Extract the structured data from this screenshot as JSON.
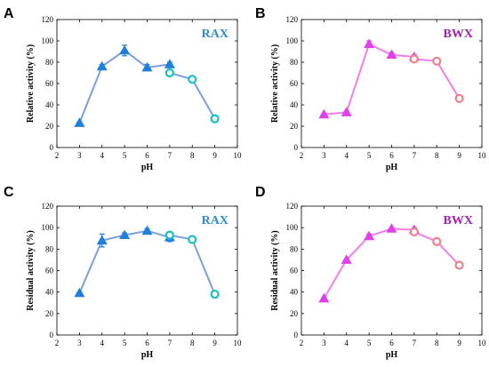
{
  "chart_data": [
    {
      "type": "line",
      "panel": "A",
      "label": "RAX",
      "xlabel": "pH",
      "ylabel": "Relative activity (%)",
      "xlim": [
        2,
        10
      ],
      "ylim": [
        0,
        120
      ],
      "xticks": [
        "2",
        "3",
        "4",
        "5",
        "6",
        "7",
        "8",
        "9",
        "10"
      ],
      "yticks": [
        "0",
        "20",
        "40",
        "60",
        "80",
        "100",
        "120"
      ],
      "colors": {
        "line": "#7a9fe0",
        "marker_a": "#1f7fdc",
        "marker_b": "#17c0c4",
        "label": "#2f8ccd"
      },
      "series": [
        {
          "marker": "triangle",
          "x": [
            3,
            4,
            5,
            6,
            7
          ],
          "y": [
            23,
            76,
            91,
            75,
            78
          ],
          "err": [
            1,
            2,
            5,
            3,
            2
          ]
        },
        {
          "marker": "circle",
          "x": [
            7,
            8,
            9
          ],
          "y": [
            70,
            64,
            27
          ],
          "err": [
            1,
            1,
            1
          ]
        }
      ]
    },
    {
      "type": "line",
      "panel": "B",
      "label": "BWX",
      "xlabel": "pH",
      "ylabel": "Relative activity (%)",
      "xlim": [
        2,
        10
      ],
      "ylim": [
        0,
        120
      ],
      "xticks": [
        "2",
        "3",
        "4",
        "5",
        "6",
        "7",
        "8",
        "9",
        "10"
      ],
      "yticks": [
        "0",
        "20",
        "40",
        "60",
        "80",
        "100",
        "120"
      ],
      "colors": {
        "line": "#f07cf0",
        "marker_a": "#e040e8",
        "marker_b": "#f0808a",
        "label": "#a020b0"
      },
      "series": [
        {
          "marker": "triangle",
          "x": [
            3,
            4,
            5,
            6,
            7
          ],
          "y": [
            31,
            33,
            97,
            87,
            85
          ],
          "err": [
            1,
            1,
            3,
            2,
            2
          ]
        },
        {
          "marker": "circle",
          "x": [
            7,
            8,
            9
          ],
          "y": [
            83,
            81,
            46
          ],
          "err": [
            2,
            1,
            1
          ]
        }
      ]
    },
    {
      "type": "line",
      "panel": "C",
      "label": "RAX",
      "xlabel": "pH",
      "ylabel": "Residual activity (%)",
      "xlim": [
        2,
        10
      ],
      "ylim": [
        0,
        120
      ],
      "xticks": [
        "2",
        "3",
        "4",
        "5",
        "6",
        "7",
        "8",
        "9",
        "10"
      ],
      "yticks": [
        "0",
        "20",
        "40",
        "60",
        "80",
        "100",
        "120"
      ],
      "colors": {
        "line": "#7a9fe0",
        "marker_a": "#1f7fdc",
        "marker_b": "#17c0c4",
        "label": "#2f8ccd"
      },
      "series": [
        {
          "marker": "triangle",
          "x": [
            3,
            4,
            5,
            6,
            7
          ],
          "y": [
            39,
            88,
            93,
            97,
            91
          ],
          "err": [
            1,
            6,
            2,
            2,
            4
          ]
        },
        {
          "marker": "circle",
          "x": [
            7,
            8,
            9
          ],
          "y": [
            93,
            89,
            38
          ],
          "err": [
            3,
            1,
            1
          ]
        }
      ]
    },
    {
      "type": "line",
      "panel": "D",
      "label": "BWX",
      "xlabel": "pH",
      "ylabel": "Residual activity (%)",
      "xlim": [
        2,
        10
      ],
      "ylim": [
        0,
        120
      ],
      "xticks": [
        "2",
        "3",
        "4",
        "5",
        "6",
        "7",
        "8",
        "9",
        "10"
      ],
      "yticks": [
        "0",
        "20",
        "40",
        "60",
        "80",
        "100",
        "120"
      ],
      "colors": {
        "line": "#f07cf0",
        "marker_a": "#e040e8",
        "marker_b": "#f0808a",
        "label": "#a020b0"
      },
      "series": [
        {
          "marker": "triangle",
          "x": [
            3,
            4,
            5,
            6,
            7
          ],
          "y": [
            34,
            70,
            92,
            99,
            98
          ],
          "err": [
            1,
            1,
            2,
            1,
            2
          ]
        },
        {
          "marker": "circle",
          "x": [
            7,
            8,
            9
          ],
          "y": [
            96,
            87,
            65
          ],
          "err": [
            1,
            1,
            2
          ]
        }
      ]
    }
  ]
}
